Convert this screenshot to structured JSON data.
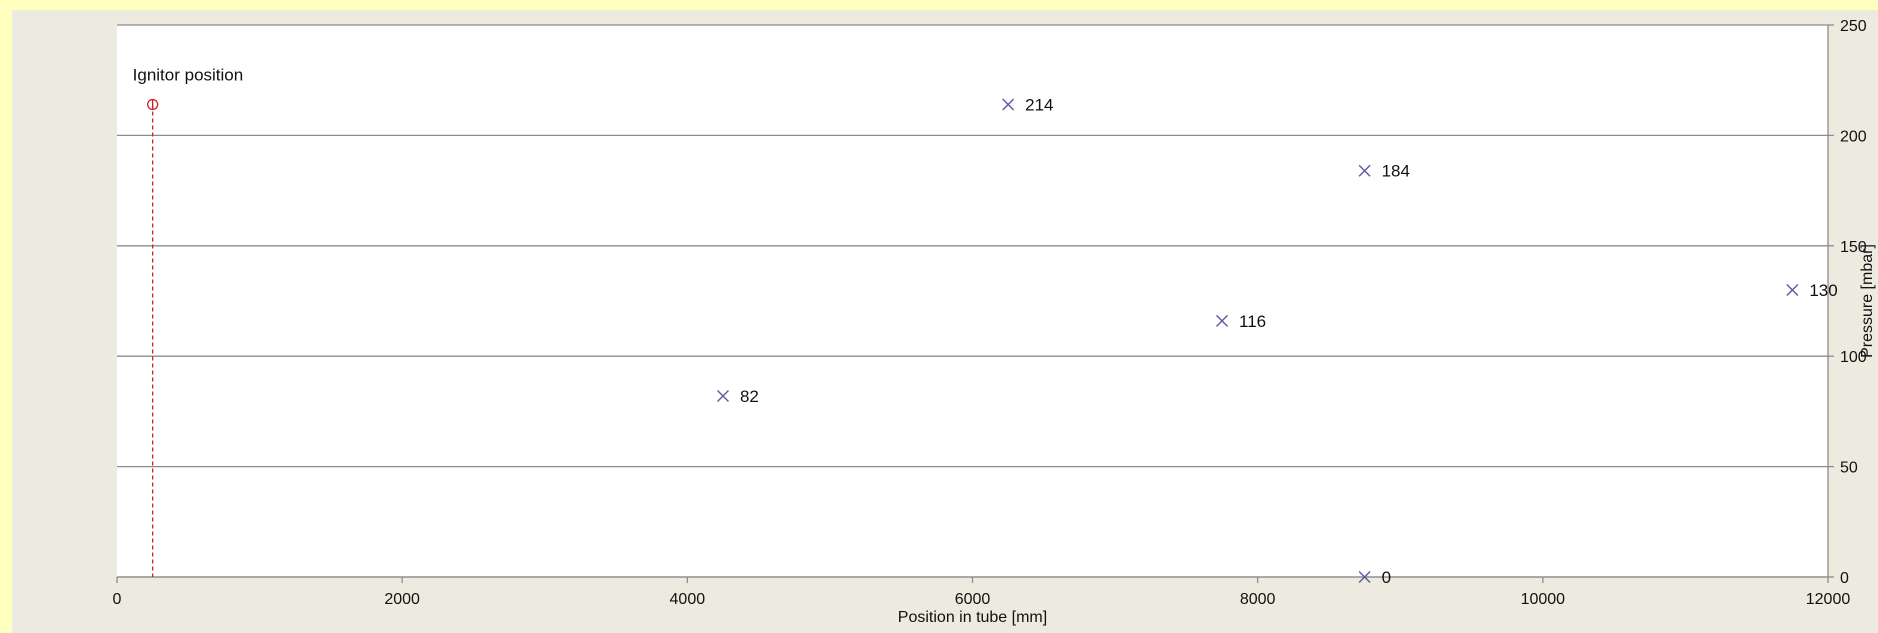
{
  "chart_data": {
    "type": "scatter",
    "xlabel": "Position in tube [mm]",
    "ylabel": "Pressure [mbar]",
    "xlim": [
      0,
      12000
    ],
    "ylim": [
      0,
      250
    ],
    "xticks": [
      0,
      2000,
      4000,
      6000,
      8000,
      10000,
      12000
    ],
    "yticks": [
      0,
      50,
      100,
      150,
      200,
      250
    ],
    "y_axis_side": "right",
    "grid": "horizontal",
    "series": [
      {
        "marker": "x",
        "color": "#5b5b9e",
        "points": [
          {
            "x": 4250,
            "y": 82,
            "label": "82"
          },
          {
            "x": 6250,
            "y": 214,
            "label": "214"
          },
          {
            "x": 7750,
            "y": 116,
            "label": "116"
          },
          {
            "x": 8750,
            "y": 184,
            "label": "184"
          },
          {
            "x": 8750,
            "y": 0,
            "label": "0"
          },
          {
            "x": 11750,
            "y": 130,
            "label": "130"
          }
        ]
      }
    ],
    "annotation": {
      "text": "Ignitor position",
      "x": 250,
      "y": 214,
      "color": "#cc2222"
    }
  }
}
